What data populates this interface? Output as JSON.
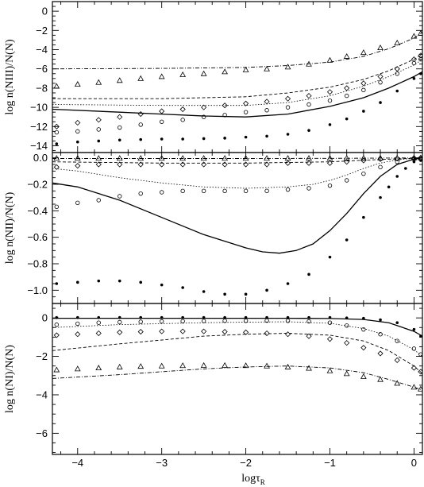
{
  "figure": {
    "xlabel": "logτ",
    "xlabel_sub": "R"
  },
  "chart_data": [
    {
      "type": "scatter",
      "panel": "top",
      "ylabel": "log n(NIII)/N(N)",
      "xlim": [
        -4.3,
        0.1
      ],
      "ylim": [
        -14.7,
        1.0
      ],
      "xticks": [
        -4,
        -3,
        -2,
        -1,
        0
      ],
      "yticks": [
        0,
        -2,
        -4,
        -6,
        -8,
        -10,
        -12,
        -14
      ],
      "series": [
        {
          "marker": "line",
          "dash": "solid",
          "x": [
            -4.3,
            -3.5,
            -3.0,
            -2.5,
            -2.0,
            -1.5,
            -1.0,
            -0.6,
            -0.3,
            0.0,
            0.1
          ],
          "y": [
            -10.2,
            -10.5,
            -10.7,
            -10.9,
            -11.0,
            -10.7,
            -9.9,
            -9.0,
            -8.0,
            -6.8,
            -6.3
          ]
        },
        {
          "marker": "line",
          "dash": "dotted",
          "x": [
            -4.3,
            -3.0,
            -2.0,
            -1.5,
            -1.0,
            -0.6,
            -0.3,
            0.0,
            0.1
          ],
          "y": [
            -9.7,
            -9.8,
            -9.8,
            -9.5,
            -8.8,
            -7.8,
            -6.8,
            -5.6,
            -5.0
          ]
        },
        {
          "marker": "line",
          "dash": "short-dash",
          "x": [
            -4.3,
            -3.0,
            -2.0,
            -1.5,
            -1.0,
            -0.6,
            -0.3,
            0.0,
            0.1
          ],
          "y": [
            -9.1,
            -9.1,
            -8.9,
            -8.5,
            -7.9,
            -7.1,
            -6.2,
            -5.0,
            -4.5
          ]
        },
        {
          "marker": "line",
          "dash": "dash-dot",
          "x": [
            -4.3,
            -3.0,
            -2.0,
            -1.5,
            -1.0,
            -0.6,
            -0.3,
            0.0,
            0.1
          ],
          "y": [
            -6.0,
            -5.95,
            -5.85,
            -5.65,
            -5.3,
            -4.7,
            -3.9,
            -2.8,
            -2.2
          ]
        },
        {
          "marker": "dot",
          "x": [
            -4.25,
            -4.0,
            -3.75,
            -3.5,
            -3.25,
            -3.0,
            -2.75,
            -2.5,
            -2.25,
            -2.0,
            -1.75,
            -1.5,
            -1.25,
            -1.0,
            -0.8,
            -0.6,
            -0.4,
            -0.2,
            0.0,
            0.08
          ],
          "y": [
            -13.8,
            -13.6,
            -13.5,
            -13.4,
            -13.35,
            -13.3,
            -13.3,
            -13.25,
            -13.2,
            -13.1,
            -13.0,
            -12.8,
            -12.4,
            -11.8,
            -11.2,
            -10.4,
            -9.5,
            -8.3,
            -7.0,
            -6.5
          ]
        },
        {
          "marker": "circle",
          "x": [
            -4.25,
            -4.0,
            -3.75,
            -3.5,
            -3.25,
            -3.0,
            -2.75,
            -2.5,
            -2.25,
            -2.0,
            -1.75,
            -1.5,
            -1.25,
            -1.0,
            -0.8,
            -0.6,
            -0.4,
            -0.2,
            0.0,
            0.08
          ],
          "y": [
            -12.6,
            -12.5,
            -12.3,
            -12.1,
            -11.8,
            -11.5,
            -11.3,
            -11.0,
            -10.8,
            -10.5,
            -10.3,
            -10.0,
            -9.7,
            -9.3,
            -8.8,
            -8.2,
            -7.4,
            -6.5,
            -5.4,
            -5.0
          ]
        },
        {
          "marker": "diamond",
          "x": [
            -4.25,
            -4.0,
            -3.75,
            -3.5,
            -3.25,
            -3.0,
            -2.75,
            -2.5,
            -2.25,
            -2.0,
            -1.75,
            -1.5,
            -1.25,
            -1.0,
            -0.8,
            -0.6,
            -0.4,
            -0.2,
            0.0,
            0.08
          ],
          "y": [
            -12.0,
            -11.6,
            -11.3,
            -11.0,
            -10.7,
            -10.4,
            -10.2,
            -10.0,
            -9.8,
            -9.6,
            -9.4,
            -9.1,
            -8.8,
            -8.4,
            -8.0,
            -7.5,
            -6.8,
            -6.0,
            -5.0,
            -4.6
          ]
        },
        {
          "marker": "triangle",
          "x": [
            -4.25,
            -4.0,
            -3.75,
            -3.5,
            -3.25,
            -3.0,
            -2.75,
            -2.5,
            -2.25,
            -2.0,
            -1.75,
            -1.5,
            -1.25,
            -1.0,
            -0.8,
            -0.6,
            -0.4,
            -0.2,
            0.0,
            0.08
          ],
          "y": [
            -7.8,
            -7.6,
            -7.4,
            -7.2,
            -7.0,
            -6.8,
            -6.6,
            -6.5,
            -6.3,
            -6.1,
            -6.0,
            -5.8,
            -5.5,
            -5.1,
            -4.7,
            -4.3,
            -3.8,
            -3.3,
            -2.6,
            -2.3
          ]
        }
      ]
    },
    {
      "type": "scatter",
      "panel": "middle",
      "ylabel": "log n(NII)/N(N)",
      "xlim": [
        -4.3,
        0.1
      ],
      "ylim": [
        -1.1,
        0.04
      ],
      "xticks": [
        -4,
        -3,
        -2,
        -1,
        0
      ],
      "yticks": [
        0.0,
        -0.2,
        -0.4,
        -0.6,
        -0.8,
        -1.0
      ],
      "series": [
        {
          "marker": "line",
          "dash": "solid",
          "x": [
            -4.3,
            -4.0,
            -3.5,
            -3.0,
            -2.5,
            -2.0,
            -1.8,
            -1.6,
            -1.4,
            -1.2,
            -1.0,
            -0.8,
            -0.6,
            -0.4,
            -0.2,
            0.0,
            0.1
          ],
          "y": [
            -0.19,
            -0.22,
            -0.32,
            -0.45,
            -0.58,
            -0.68,
            -0.71,
            -0.72,
            -0.7,
            -0.65,
            -0.55,
            -0.42,
            -0.27,
            -0.14,
            -0.05,
            -0.01,
            0.0
          ]
        },
        {
          "marker": "line",
          "dash": "dotted",
          "x": [
            -4.3,
            -4.0,
            -3.5,
            -3.0,
            -2.5,
            -2.0,
            -1.5,
            -1.2,
            -1.0,
            -0.8,
            -0.6,
            -0.4,
            -0.2,
            0.0,
            0.1
          ],
          "y": [
            -0.08,
            -0.1,
            -0.15,
            -0.19,
            -0.22,
            -0.23,
            -0.22,
            -0.2,
            -0.17,
            -0.13,
            -0.08,
            -0.04,
            -0.015,
            -0.003,
            0.0
          ]
        },
        {
          "marker": "line",
          "dash": "short-dash",
          "x": [
            -4.3,
            -3.0,
            -2.0,
            -1.0,
            -0.5,
            0.0,
            0.1
          ],
          "y": [
            -0.03,
            -0.04,
            -0.04,
            -0.03,
            -0.015,
            -0.003,
            0.0
          ]
        },
        {
          "marker": "line",
          "dash": "dash-dot",
          "x": [
            -4.3,
            -3.0,
            -2.0,
            -1.0,
            0.0,
            0.1
          ],
          "y": [
            -0.005,
            -0.005,
            -0.005,
            -0.004,
            -0.001,
            0.0
          ]
        },
        {
          "marker": "dot",
          "x": [
            -4.25,
            -4.0,
            -3.75,
            -3.5,
            -3.25,
            -3.0,
            -2.75,
            -2.5,
            -2.25,
            -2.0,
            -1.75,
            -1.5,
            -1.25,
            -1.0,
            -0.8,
            -0.6,
            -0.4,
            -0.3,
            -0.2,
            -0.1,
            0.0,
            0.08
          ],
          "y": [
            -0.95,
            -0.94,
            -0.93,
            -0.93,
            -0.94,
            -0.96,
            -0.98,
            -1.01,
            -1.03,
            -1.03,
            -1.0,
            -0.95,
            -0.88,
            -0.75,
            -0.62,
            -0.45,
            -0.3,
            -0.22,
            -0.14,
            -0.08,
            -0.03,
            -0.02
          ]
        },
        {
          "marker": "circle",
          "x": [
            -4.25,
            -4.0,
            -3.75,
            -3.5,
            -3.25,
            -3.0,
            -2.75,
            -2.5,
            -2.25,
            -2.0,
            -1.75,
            -1.5,
            -1.25,
            -1.0,
            -0.8,
            -0.6,
            -0.4,
            -0.2,
            0.0,
            0.08
          ],
          "y": [
            -0.37,
            -0.34,
            -0.32,
            -0.29,
            -0.27,
            -0.26,
            -0.25,
            -0.25,
            -0.25,
            -0.25,
            -0.25,
            -0.24,
            -0.23,
            -0.21,
            -0.17,
            -0.12,
            -0.07,
            -0.03,
            -0.01,
            -0.005
          ]
        },
        {
          "marker": "diamond",
          "x": [
            -4.25,
            -4.0,
            -3.75,
            -3.5,
            -3.25,
            -3.0,
            -2.75,
            -2.5,
            -2.25,
            -2.0,
            -1.75,
            -1.5,
            -1.25,
            -1.0,
            -0.8,
            -0.6,
            -0.4,
            -0.2,
            0.0,
            0.08
          ],
          "y": [
            -0.07,
            -0.06,
            -0.05,
            -0.05,
            -0.05,
            -0.05,
            -0.05,
            -0.05,
            -0.05,
            -0.05,
            -0.05,
            -0.04,
            -0.04,
            -0.04,
            -0.03,
            -0.02,
            -0.01,
            -0.005,
            -0.002,
            0.0
          ]
        },
        {
          "marker": "triangle",
          "x": [
            -4.25,
            -4.0,
            -3.75,
            -3.5,
            -3.25,
            -3.0,
            -2.75,
            -2.5,
            -2.25,
            -2.0,
            -1.75,
            -1.5,
            -1.25,
            -1.0,
            -0.8,
            -0.6,
            -0.4,
            -0.2,
            0.0,
            0.08
          ],
          "y": [
            -0.003,
            -0.003,
            -0.003,
            -0.003,
            -0.003,
            -0.003,
            -0.003,
            -0.003,
            -0.003,
            -0.003,
            -0.003,
            -0.003,
            -0.003,
            -0.003,
            -0.002,
            -0.002,
            -0.001,
            -0.001,
            0.0,
            0.0
          ]
        }
      ]
    },
    {
      "type": "scatter",
      "panel": "bottom",
      "ylabel": "log n(NI)/N(N)",
      "xlim": [
        -4.3,
        0.1
      ],
      "ylim": [
        -7.1,
        0.75
      ],
      "xticks": [
        -4,
        -3,
        -2,
        -1,
        0
      ],
      "yticks": [
        0,
        -2,
        -4,
        -6
      ],
      "series": [
        {
          "marker": "line",
          "dash": "solid",
          "x": [
            -4.3,
            -3.0,
            -2.0,
            -1.5,
            -1.0,
            -0.6,
            -0.3,
            0.0,
            0.1
          ],
          "y": [
            -0.02,
            -0.02,
            -0.02,
            -0.02,
            -0.03,
            -0.08,
            -0.25,
            -0.7,
            -0.95
          ]
        },
        {
          "marker": "line",
          "dash": "dotted",
          "x": [
            -4.3,
            -3.5,
            -3.0,
            -2.5,
            -2.0,
            -1.5,
            -1.0,
            -0.6,
            -0.3,
            0.0,
            0.1
          ],
          "y": [
            -0.5,
            -0.35,
            -0.3,
            -0.25,
            -0.22,
            -0.2,
            -0.28,
            -0.55,
            -0.95,
            -1.65,
            -2.0
          ]
        },
        {
          "marker": "line",
          "dash": "short-dash",
          "x": [
            -4.3,
            -3.5,
            -3.0,
            -2.5,
            -2.0,
            -1.5,
            -1.0,
            -0.6,
            -0.3,
            0.0,
            0.1
          ],
          "y": [
            -1.7,
            -1.35,
            -1.15,
            -0.95,
            -0.85,
            -0.8,
            -0.9,
            -1.2,
            -1.7,
            -2.5,
            -2.9
          ]
        },
        {
          "marker": "line",
          "dash": "dash-dot",
          "x": [
            -4.3,
            -3.5,
            -3.0,
            -2.5,
            -2.0,
            -1.5,
            -1.0,
            -0.6,
            -0.3,
            0.0,
            0.1
          ],
          "y": [
            -3.15,
            -2.95,
            -2.8,
            -2.65,
            -2.55,
            -2.5,
            -2.6,
            -2.85,
            -3.2,
            -3.6,
            -3.75
          ]
        },
        {
          "marker": "dot",
          "x": [
            -4.25,
            -4.0,
            -3.75,
            -3.5,
            -3.25,
            -3.0,
            -2.75,
            -2.5,
            -2.25,
            -2.0,
            -1.75,
            -1.5,
            -1.25,
            -1.0,
            -0.8,
            -0.6,
            -0.4,
            -0.2,
            0.0,
            0.08
          ],
          "y": [
            0.02,
            0.02,
            0.02,
            0.02,
            0.02,
            0.02,
            0.02,
            0.02,
            0.02,
            0.02,
            0.02,
            0.02,
            0.02,
            0.02,
            0.0,
            -0.02,
            -0.1,
            -0.25,
            -0.6,
            -0.95
          ]
        },
        {
          "marker": "circle",
          "x": [
            -4.25,
            -4.0,
            -3.75,
            -3.5,
            -3.25,
            -3.0,
            -2.75,
            -2.5,
            -2.25,
            -2.0,
            -1.75,
            -1.5,
            -1.25,
            -1.0,
            -0.8,
            -0.6,
            -0.4,
            -0.2,
            0.0,
            0.08
          ],
          "y": [
            -0.35,
            -0.3,
            -0.25,
            -0.22,
            -0.2,
            -0.18,
            -0.17,
            -0.16,
            -0.15,
            -0.15,
            -0.14,
            -0.15,
            -0.18,
            -0.25,
            -0.4,
            -0.6,
            -0.85,
            -1.2,
            -1.6,
            -1.9
          ]
        },
        {
          "marker": "diamond",
          "x": [
            -4.25,
            -4.0,
            -3.75,
            -3.5,
            -3.25,
            -3.0,
            -2.75,
            -2.5,
            -2.25,
            -2.0,
            -1.75,
            -1.5,
            -1.25,
            -1.0,
            -0.8,
            -0.6,
            -0.4,
            -0.2,
            0.0,
            0.08
          ],
          "y": [
            -0.9,
            -0.85,
            -0.8,
            -0.75,
            -0.72,
            -0.7,
            -0.7,
            -0.7,
            -0.72,
            -0.75,
            -0.8,
            -0.85,
            -0.95,
            -1.1,
            -1.3,
            -1.55,
            -1.85,
            -2.2,
            -2.6,
            -2.8
          ]
        },
        {
          "marker": "triangle",
          "x": [
            -4.25,
            -4.0,
            -3.75,
            -3.5,
            -3.25,
            -3.0,
            -2.75,
            -2.5,
            -2.25,
            -2.0,
            -1.75,
            -1.5,
            -1.25,
            -1.0,
            -0.8,
            -0.6,
            -0.4,
            -0.2,
            0.0,
            0.08
          ],
          "y": [
            -2.7,
            -2.65,
            -2.6,
            -2.55,
            -2.52,
            -2.5,
            -2.48,
            -2.47,
            -2.47,
            -2.48,
            -2.5,
            -2.55,
            -2.62,
            -2.75,
            -2.9,
            -3.05,
            -3.2,
            -3.4,
            -3.6,
            -3.7
          ]
        }
      ]
    }
  ]
}
